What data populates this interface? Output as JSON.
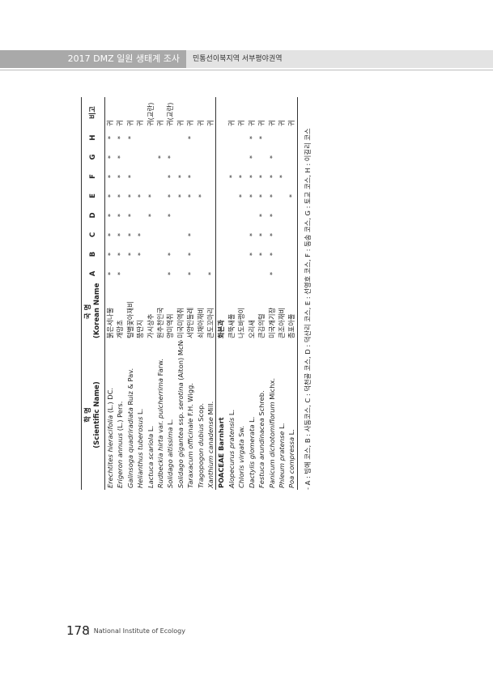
{
  "header": {
    "survey": "2017 DMZ 일원 생태계 조사",
    "region": "민통선이북지역 서부평야권역"
  },
  "table": {
    "columns": {
      "scientific": "학 명",
      "scientific_en": "(Scientific Name)",
      "korean": "국 명",
      "korean_en": "(Korean Name)",
      "sites": [
        "A",
        "B",
        "C",
        "D",
        "E",
        "F",
        "G",
        "H"
      ],
      "note": "비고"
    },
    "rows": [
      {
        "scientific": [
          "Erechtites hieracifolia",
          " (L.) DC."
        ],
        "korean": "붉은서나물",
        "sites": [
          "*",
          "*",
          "*",
          "*",
          "*",
          "*",
          "*",
          "*"
        ],
        "note": "귀"
      },
      {
        "scientific": [
          "Erigeron annuus",
          " (L.) Pers."
        ],
        "korean": "개망초",
        "sites": [
          "*",
          "*",
          "*",
          "*",
          "*",
          "*",
          "*",
          "*"
        ],
        "note": "귀"
      },
      {
        "scientific": [
          "Galinsoga quadriradiata",
          " Ruiz & Pav."
        ],
        "korean": "털별꽃아재비",
        "sites": [
          null,
          "*",
          "*",
          "*",
          "*",
          "*",
          null,
          "*"
        ],
        "note": "귀"
      },
      {
        "scientific": [
          "Helianthus tuberosus",
          " L."
        ],
        "korean": "뚱딴지",
        "sites": [
          null,
          "*",
          "*",
          null,
          "*",
          null,
          null,
          null
        ],
        "note": "귀"
      },
      {
        "scientific": [
          "Lactuca scariola",
          " L."
        ],
        "korean": "가시상추",
        "sites": [
          null,
          null,
          null,
          "*",
          "*",
          null,
          null,
          null
        ],
        "note": "귀(교란)"
      },
      {
        "scientific": [
          "Rudbeckia hirta",
          " var. ",
          "pulcherrima",
          " Farw."
        ],
        "korean": "원추천인국",
        "sites": [
          null,
          null,
          null,
          null,
          null,
          null,
          "*",
          null
        ],
        "note": "귀"
      },
      {
        "scientific": [
          "Solidago altissima",
          " L."
        ],
        "korean": "양미역취",
        "sites": [
          "*",
          "*",
          null,
          "*",
          "*",
          "*",
          "*",
          null
        ],
        "note": "귀(교란)"
      },
      {
        "scientific": [
          "Solidago gigantea",
          " ssp. ",
          "serotina",
          " (Aiton) McNeill"
        ],
        "korean": "미국미역취",
        "sites": [
          null,
          null,
          null,
          null,
          "*",
          "*",
          null,
          null
        ],
        "note": "귀"
      },
      {
        "scientific": [
          "Taraxacum officinale",
          " F.H. Wigg."
        ],
        "korean": "서양민들레",
        "sites": [
          "*",
          "*",
          "*",
          null,
          "*",
          "*",
          null,
          "*"
        ],
        "note": "귀"
      },
      {
        "scientific": [
          "Tragopogon dubius",
          " Scop."
        ],
        "korean": "쇠채아재비",
        "sites": [
          null,
          null,
          null,
          null,
          "*",
          null,
          null,
          null
        ],
        "note": "귀"
      },
      {
        "scientific": [
          "Xanthium canadense",
          " Mill."
        ],
        "korean": "큰도꼬마리",
        "sites": [
          "*",
          null,
          null,
          null,
          null,
          null,
          null,
          null
        ],
        "note": "귀"
      },
      {
        "family": "POACEAE Barnhart",
        "korean": "화본과"
      },
      {
        "scientific": [
          "Alopecurus pratensis",
          " L."
        ],
        "korean": "큰뚝새풀",
        "sites": [
          null,
          null,
          null,
          null,
          null,
          "*",
          null,
          null
        ],
        "note": "귀"
      },
      {
        "scientific": [
          "Chloris virgata",
          " Sw."
        ],
        "korean": "나도바랭이",
        "sites": [
          null,
          null,
          null,
          null,
          "*",
          "*",
          null,
          null
        ],
        "note": "귀"
      },
      {
        "scientific": [
          "Dactylis glomerata",
          " L."
        ],
        "korean": "오리새",
        "sites": [
          null,
          "*",
          "*",
          null,
          "*",
          "*",
          "*",
          "*"
        ],
        "note": "귀"
      },
      {
        "scientific": [
          "Festuca arundinacea",
          " Schreb."
        ],
        "korean": "큰김의털",
        "sites": [
          null,
          "*",
          "*",
          "*",
          "*",
          "*",
          null,
          "*"
        ],
        "note": "귀"
      },
      {
        "scientific": [
          "Panicum dichotomiflorum",
          " Michx."
        ],
        "korean": "미국개기장",
        "sites": [
          "*",
          "*",
          "*",
          "*",
          "*",
          "*",
          "*",
          null
        ],
        "note": "귀"
      },
      {
        "scientific": [
          "Phleum pratense",
          " L."
        ],
        "korean": "큰조아재비",
        "sites": [
          null,
          null,
          null,
          null,
          null,
          "*",
          null,
          null
        ],
        "note": "귀"
      },
      {
        "scientific": [
          "Poa compressa",
          " L."
        ],
        "korean": "좀포아풀",
        "sites": [
          null,
          null,
          null,
          null,
          "*",
          null,
          null,
          null
        ],
        "note": "귀"
      }
    ]
  },
  "footnote": "- A : 빙애 코스, B : 사동코스, C : 덕천골 코스, D : 덕산리 코스, E : 선영호 코스, F : 동송 코스, G : 토교 코스, H : 이길리 코스",
  "footer": {
    "page": "178",
    "publisher": "National Institute of Ecology"
  }
}
